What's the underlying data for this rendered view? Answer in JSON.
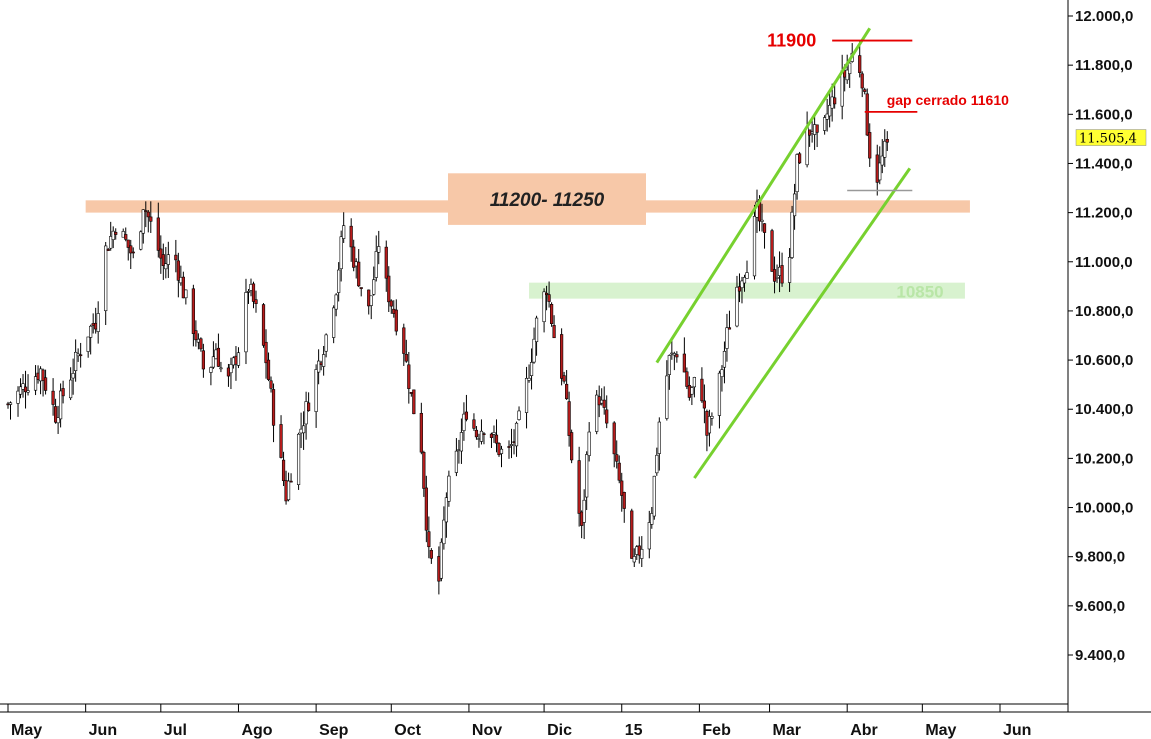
{
  "chart_data": {
    "type": "candlestick",
    "title": "",
    "xlabel": "",
    "ylabel": "",
    "ylim": [
      9250,
      12050
    ],
    "y_ticks": [
      "12.000,0",
      "11.800,0",
      "11.600,0",
      "11.400,0",
      "11.200,0",
      "11.000,0",
      "10.800,0",
      "10.600,0",
      "10.400,0",
      "10.200,0",
      "10.000,0",
      "9.800,0",
      "9.600,0",
      "9.400,0"
    ],
    "y_tick_values": [
      12000,
      11800,
      11600,
      11400,
      11200,
      11000,
      10800,
      10600,
      10400,
      10200,
      10000,
      9800,
      9600,
      9400
    ],
    "x_ticks": [
      "May",
      "Jun",
      "Jul",
      "Ago",
      "Sep",
      "Oct",
      "Nov",
      "Dic",
      "15",
      "Feb",
      "Mar",
      "Abr",
      "May",
      "Jun"
    ],
    "x_tick_dates": [
      "2014-05-01",
      "2014-06-01",
      "2014-07-01",
      "2014-08-01",
      "2014-09-01",
      "2014-10-01",
      "2014-11-01",
      "2014-12-01",
      "2015-01-01",
      "2015-02-01",
      "2015-03-01",
      "2015-04-01",
      "2015-05-01",
      "2015-06-01"
    ],
    "grid": false,
    "last_price_label": "11.505,4",
    "last_price": 11505.4,
    "series": [
      {
        "values": [
          [
            "2014-05-01",
            10420
          ],
          [
            "2014-05-08",
            10500
          ],
          [
            "2014-05-14",
            10560
          ],
          [
            "2014-05-20",
            10380
          ],
          [
            "2014-05-26",
            10540
          ],
          [
            "2014-06-01",
            10700
          ],
          [
            "2014-06-05",
            10760
          ],
          [
            "2014-06-09",
            11050
          ],
          [
            "2014-06-13",
            11150
          ],
          [
            "2014-06-17",
            11080
          ],
          [
            "2014-06-21",
            11000
          ],
          [
            "2014-06-24",
            11240
          ],
          [
            "2014-06-28",
            11120
          ],
          [
            "2014-07-02",
            10980
          ],
          [
            "2014-07-06",
            11050
          ],
          [
            "2014-07-10",
            10880
          ],
          [
            "2014-07-15",
            10700
          ],
          [
            "2014-07-19",
            10520
          ],
          [
            "2014-07-23",
            10650
          ],
          [
            "2014-07-27",
            10480
          ],
          [
            "2014-08-01",
            10650
          ],
          [
            "2014-08-05",
            10900
          ],
          [
            "2014-08-08",
            10800
          ],
          [
            "2014-08-12",
            10600
          ],
          [
            "2014-08-16",
            10300
          ],
          [
            "2014-08-20",
            10050
          ],
          [
            "2014-08-24",
            10250
          ],
          [
            "2014-08-28",
            10400
          ],
          [
            "2014-09-01",
            10550
          ],
          [
            "2014-09-05",
            10700
          ],
          [
            "2014-09-09",
            10900
          ],
          [
            "2014-09-12",
            11150
          ],
          [
            "2014-09-15",
            11050
          ],
          [
            "2014-09-19",
            10900
          ],
          [
            "2014-09-22",
            10800
          ],
          [
            "2014-09-25",
            11000
          ],
          [
            "2014-09-27",
            11160
          ],
          [
            "2014-09-29",
            10900
          ],
          [
            "2014-10-02",
            10800
          ],
          [
            "2014-10-06",
            10650
          ],
          [
            "2014-10-09",
            10450
          ],
          [
            "2014-10-13",
            10250
          ],
          [
            "2014-10-16",
            9800
          ],
          [
            "2014-10-20",
            9700
          ],
          [
            "2014-10-23",
            10050
          ],
          [
            "2014-10-27",
            10200
          ],
          [
            "2014-10-31",
            10400
          ],
          [
            "2014-11-04",
            10300
          ],
          [
            "2014-11-08",
            10350
          ],
          [
            "2014-11-12",
            10250
          ],
          [
            "2014-11-16",
            10200
          ],
          [
            "2014-11-20",
            10300
          ],
          [
            "2014-11-24",
            10500
          ],
          [
            "2014-11-28",
            10750
          ],
          [
            "2014-12-02",
            10900
          ],
          [
            "2014-12-05",
            10700
          ],
          [
            "2014-12-09",
            10500
          ],
          [
            "2014-12-12",
            10200
          ],
          [
            "2014-12-16",
            9900
          ],
          [
            "2014-12-19",
            10350
          ],
          [
            "2014-12-23",
            10450
          ],
          [
            "2014-12-27",
            10300
          ],
          [
            "2015-01-01",
            10050
          ],
          [
            "2015-01-05",
            9750
          ],
          [
            "2015-01-09",
            9850
          ],
          [
            "2015-01-13",
            10000
          ],
          [
            "2015-01-16",
            10350
          ],
          [
            "2015-01-20",
            10600
          ],
          [
            "2015-01-24",
            10650
          ],
          [
            "2015-01-28",
            10450
          ],
          [
            "2015-02-01",
            10550
          ],
          [
            "2015-02-04",
            10300
          ],
          [
            "2015-02-08",
            10450
          ],
          [
            "2015-02-12",
            10700
          ],
          [
            "2015-02-16",
            10900
          ],
          [
            "2015-02-20",
            11000
          ],
          [
            "2015-02-24",
            11200
          ],
          [
            "2015-02-28",
            11050
          ],
          [
            "2015-03-03",
            10950
          ],
          [
            "2015-03-06",
            10950
          ],
          [
            "2015-03-09",
            11050
          ],
          [
            "2015-03-12",
            11400
          ],
          [
            "2015-03-15",
            11500
          ],
          [
            "2015-03-18",
            11550
          ],
          [
            "2015-03-21",
            11450
          ],
          [
            "2015-03-24",
            11600
          ],
          [
            "2015-03-28",
            11700
          ],
          [
            "2015-04-01",
            11780
          ],
          [
            "2015-04-04",
            11870
          ],
          [
            "2015-04-07",
            11750
          ],
          [
            "2015-04-10",
            11450
          ],
          [
            "2015-04-13",
            11350
          ],
          [
            "2015-04-16",
            11450
          ],
          [
            "2015-04-19",
            11505.4
          ]
        ]
      }
    ],
    "annotations": [
      {
        "text": "11900",
        "y": 11900,
        "x_start": "2015-03-26",
        "x_end": "2015-04-27",
        "color": "#e60000"
      },
      {
        "text": "gap cerrado 11610",
        "y": 11610,
        "x_start": "2015-04-08",
        "x_end": "2015-04-29",
        "color": "#e60000"
      },
      {
        "text": "11200- 11250",
        "y_band": [
          11200,
          11250
        ],
        "x_start": "2014-06-01",
        "x_end": "2015-05-20",
        "color": "#f7c8a8"
      },
      {
        "text": "10850",
        "y_band": [
          10850,
          10915
        ],
        "x_start": "2014-11-25",
        "x_end": "2015-05-18",
        "color": "#d8f2cf"
      },
      {
        "text": "",
        "y": 11290,
        "x_start": "2015-04-01",
        "x_end": "2015-04-27",
        "color": "#999999"
      }
    ],
    "trendlines": [
      {
        "from": [
          "2015-01-15",
          10590
        ],
        "to": [
          "2015-04-10",
          11950
        ],
        "color": "#77d12f"
      },
      {
        "from": [
          "2015-01-30",
          10120
        ],
        "to": [
          "2015-04-26",
          11380
        ],
        "color": "#77d12f"
      }
    ]
  }
}
